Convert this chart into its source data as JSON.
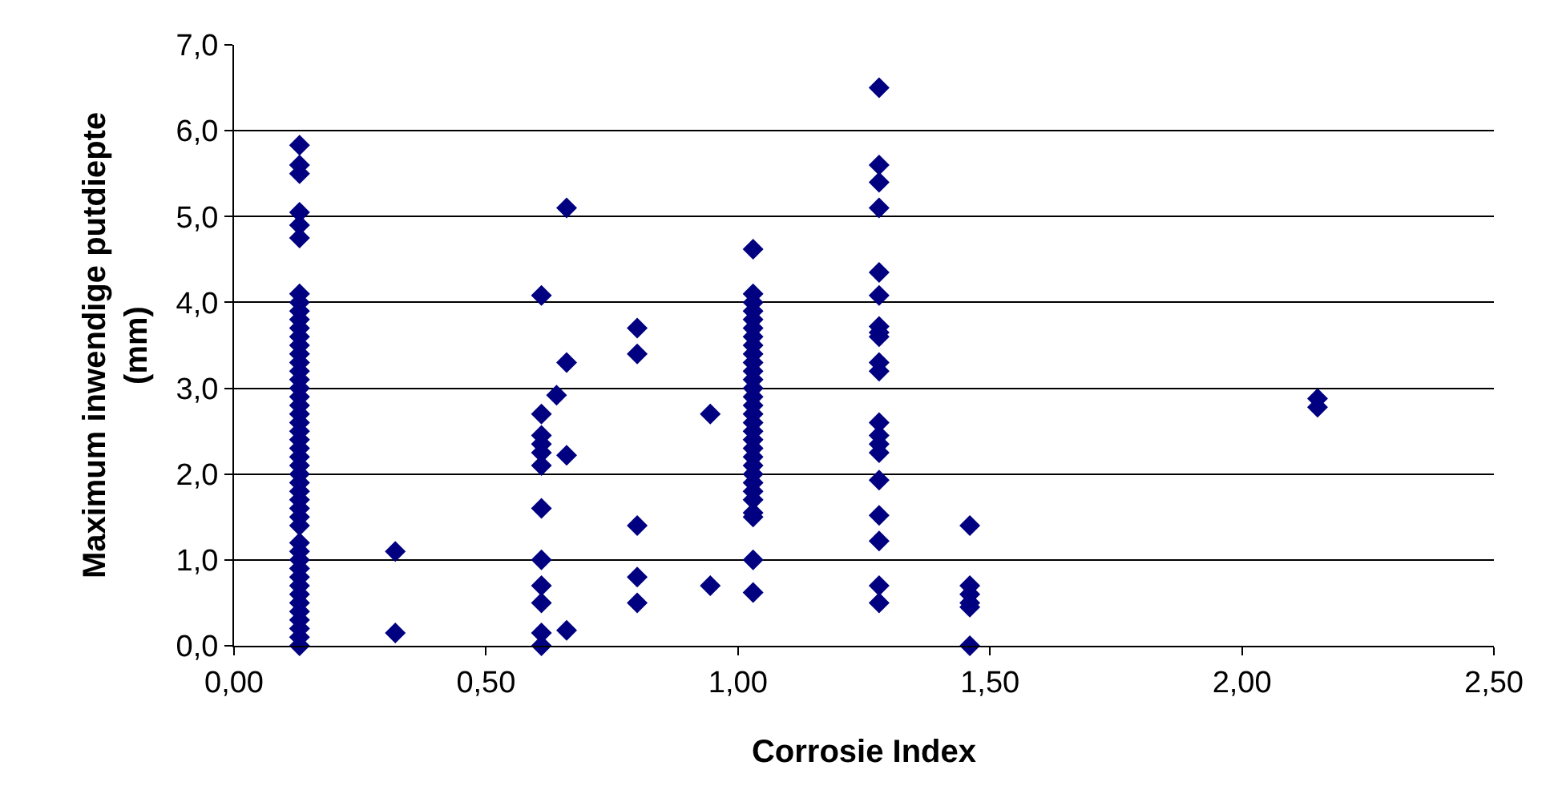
{
  "chart_data": {
    "type": "scatter",
    "xlabel": "Corrosie Index",
    "ylabel": "Maximum inwendige putdiepte (mm)",
    "marker": "diamond",
    "grid": "y",
    "xlim": [
      0,
      2.5
    ],
    "xticks": [
      {
        "value": 0,
        "label": "0,00"
      },
      {
        "value": 0.5,
        "label": "0,50"
      },
      {
        "value": 1,
        "label": "1,00"
      },
      {
        "value": 1.5,
        "label": "1,50"
      },
      {
        "value": 2,
        "label": "2,00"
      },
      {
        "value": 2.5,
        "label": "2,50"
      }
    ],
    "ylim": [
      0,
      7
    ],
    "yticks": [
      {
        "value": 0,
        "label": "0,0"
      },
      {
        "value": 1,
        "label": "1,0"
      },
      {
        "value": 2,
        "label": "2,0"
      },
      {
        "value": 3,
        "label": "3,0"
      },
      {
        "value": 4,
        "label": "4,0"
      },
      {
        "value": 5,
        "label": "5,0"
      },
      {
        "value": 6,
        "label": "6,0"
      },
      {
        "value": 7,
        "label": "7,0"
      }
    ],
    "series": [
      {
        "color": "#000080",
        "x": [
          0.13,
          0.13,
          0.13,
          0.13,
          0.13,
          0.13,
          0.13,
          0.13,
          0.13,
          0.13,
          0.13,
          0.13,
          0.13,
          0.13,
          0.13,
          0.13,
          0.13,
          0.13,
          0.13,
          0.13,
          0.13,
          0.13,
          0.13,
          0.13,
          0.13,
          0.13,
          0.13,
          0.13,
          0.13,
          0.13,
          0.13,
          0.13,
          0.13,
          0.13,
          0.13,
          0.13,
          0.13,
          0.13,
          0.13,
          0.13,
          0.13,
          0.13,
          0.13,
          0.13,
          0.13,
          0.13,
          0.13,
          0.32,
          0.32,
          0.61,
          0.61,
          0.61,
          0.61,
          0.61,
          0.61,
          0.61,
          0.61,
          0.61,
          0.61,
          0.61,
          0.61,
          0.64,
          0.66,
          0.66,
          0.66,
          0.66,
          0.8,
          0.8,
          0.8,
          0.8,
          0.8,
          0.945,
          0.945,
          1.03,
          1.03,
          1.03,
          1.03,
          1.03,
          1.03,
          1.03,
          1.03,
          1.03,
          1.03,
          1.03,
          1.03,
          1.03,
          1.03,
          1.03,
          1.03,
          1.03,
          1.03,
          1.03,
          1.03,
          1.03,
          1.03,
          1.03,
          1.03,
          1.03,
          1.03,
          1.03,
          1.03,
          1.03,
          1.03,
          1.28,
          1.28,
          1.28,
          1.28,
          1.28,
          1.28,
          1.28,
          1.28,
          1.28,
          1.28,
          1.28,
          1.28,
          1.28,
          1.28,
          1.28,
          1.28,
          1.28,
          1.28,
          1.28,
          1.28,
          1.46,
          1.46,
          1.46,
          1.46,
          1.46,
          1.46,
          2.15,
          2.15
        ],
        "values": [
          0,
          0.1,
          0.2,
          0.3,
          0.4,
          0.5,
          0.6,
          0.7,
          0.8,
          0.9,
          1.0,
          1.1,
          1.2,
          1.4,
          1.5,
          1.6,
          1.7,
          1.8,
          1.9,
          2.0,
          2.1,
          2.2,
          2.3,
          2.4,
          2.5,
          2.6,
          2.7,
          2.8,
          2.9,
          3.0,
          3.1,
          3.2,
          3.3,
          3.4,
          3.5,
          3.6,
          3.7,
          3.8,
          3.9,
          4.0,
          4.1,
          4.75,
          4.9,
          5.05,
          5.5,
          5.6,
          5.83,
          1.1,
          0.15,
          4.08,
          2.7,
          2.45,
          2.35,
          2.25,
          2.1,
          1.6,
          1.0,
          0.7,
          0.5,
          0.15,
          0,
          2.92,
          5.1,
          3.3,
          2.22,
          0.18,
          3.7,
          3.4,
          1.4,
          0.8,
          0.5,
          2.7,
          0.7,
          4.62,
          4.1,
          4.0,
          3.9,
          3.8,
          3.7,
          3.6,
          3.5,
          3.4,
          3.3,
          3.2,
          3.1,
          3.0,
          2.9,
          2.8,
          2.7,
          2.6,
          2.5,
          2.4,
          2.3,
          2.2,
          2.1,
          2.0,
          1.9,
          1.8,
          1.7,
          1.55,
          1.5,
          1.0,
          0.62,
          6.5,
          5.6,
          5.4,
          5.1,
          4.35,
          4.08,
          3.72,
          3.65,
          3.6,
          3.3,
          3.2,
          2.6,
          2.45,
          2.35,
          2.25,
          1.93,
          1.52,
          1.22,
          0.7,
          0.5,
          1.4,
          0.7,
          0.6,
          0.5,
          0.45,
          0,
          2.88,
          2.78
        ]
      }
    ]
  }
}
